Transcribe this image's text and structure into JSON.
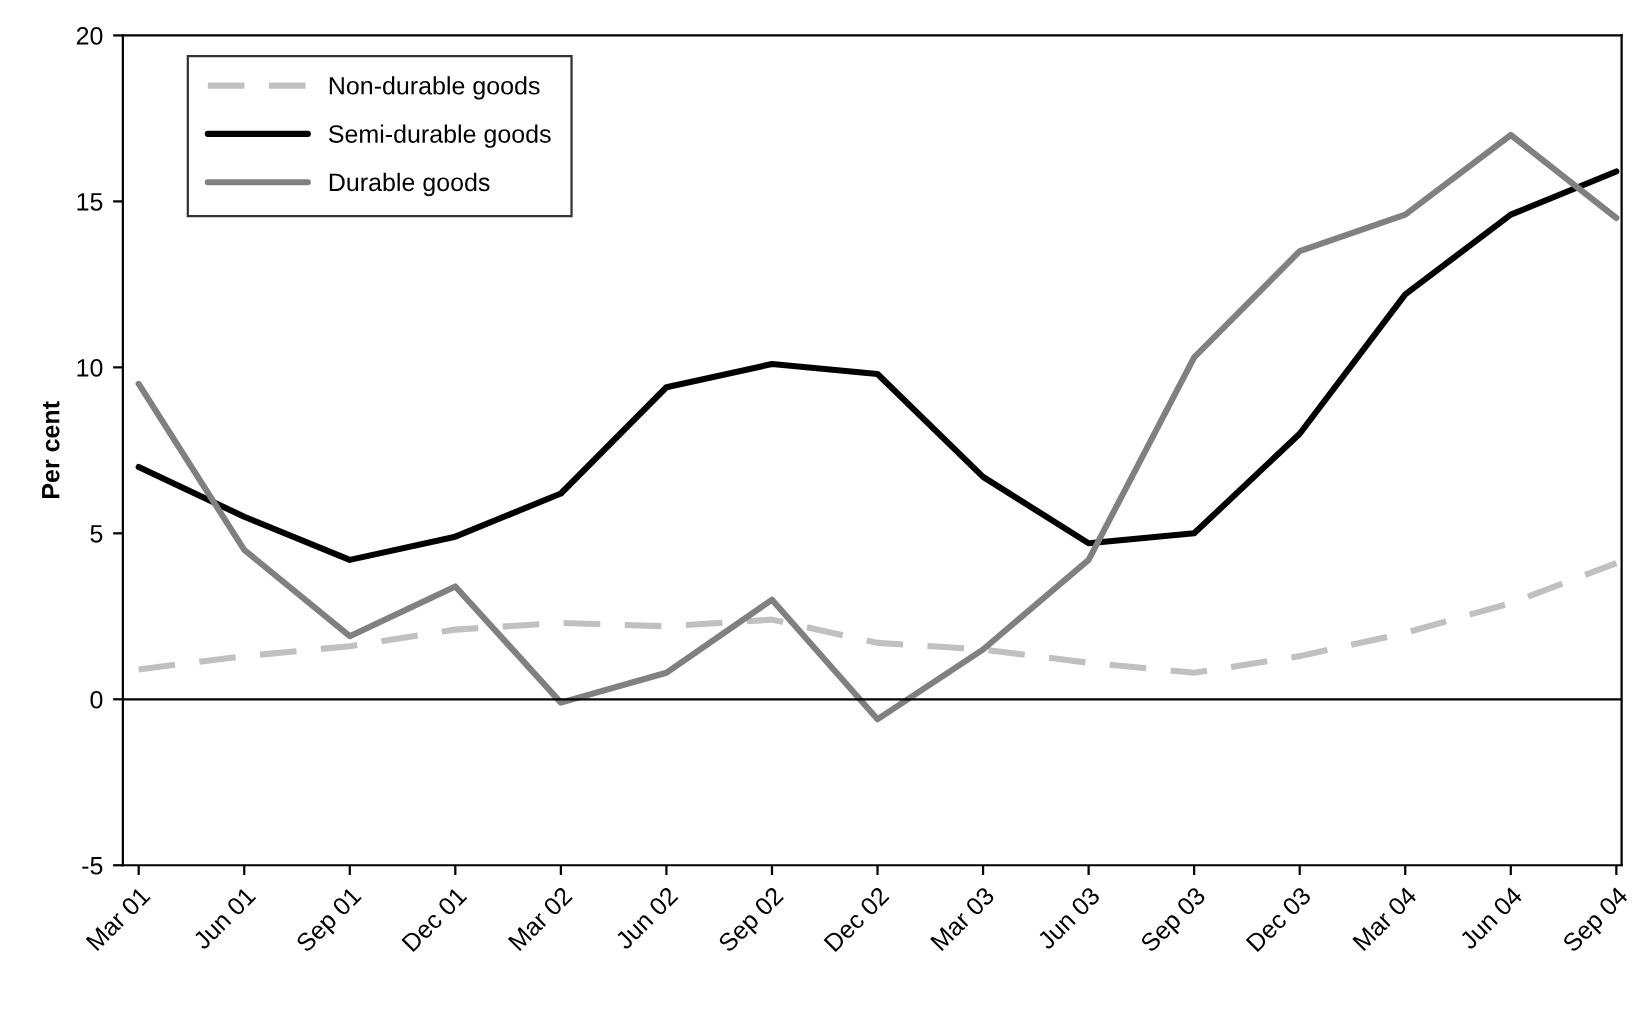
{
  "chart_data": {
    "type": "line",
    "ylabel": "Per cent",
    "categories": [
      "Mar 01",
      "Jun 01",
      "Sep 01",
      "Dec 01",
      "Mar 02",
      "Jun 02",
      "Sep 02",
      "Dec 02",
      "Mar 03",
      "Jun 03",
      "Sep 03",
      "Dec 03",
      "Mar 04",
      "Jun 04",
      "Sep 04"
    ],
    "series": [
      {
        "name": "Non-durable goods",
        "color": "#c0c0c0",
        "line_style": "dashed",
        "values": [
          0.9,
          1.3,
          1.6,
          2.1,
          2.3,
          2.2,
          2.4,
          1.7,
          1.5,
          1.1,
          0.8,
          1.3,
          2.0,
          2.9,
          4.1
        ]
      },
      {
        "name": "Semi-durable goods",
        "color": "#000000",
        "line_style": "solid",
        "values": [
          7.0,
          5.5,
          4.2,
          4.9,
          6.2,
          9.4,
          10.1,
          9.8,
          6.7,
          4.7,
          5.0,
          8.0,
          12.2,
          14.6,
          15.9
        ]
      },
      {
        "name": "Durable goods",
        "color": "#808080",
        "line_style": "solid",
        "values": [
          9.5,
          4.5,
          1.9,
          3.4,
          -0.1,
          0.8,
          3.0,
          -0.6,
          1.5,
          4.2,
          10.3,
          13.5,
          14.6,
          17.0,
          14.5
        ]
      }
    ],
    "ylim": [
      -5,
      20
    ],
    "yticks": [
      -5,
      0,
      5,
      10,
      15,
      20
    ],
    "ref_lines": [
      {
        "axis": "y",
        "value": 0,
        "color": "#000000"
      }
    ],
    "grid": false,
    "legend": "top left",
    "marker": "none"
  }
}
